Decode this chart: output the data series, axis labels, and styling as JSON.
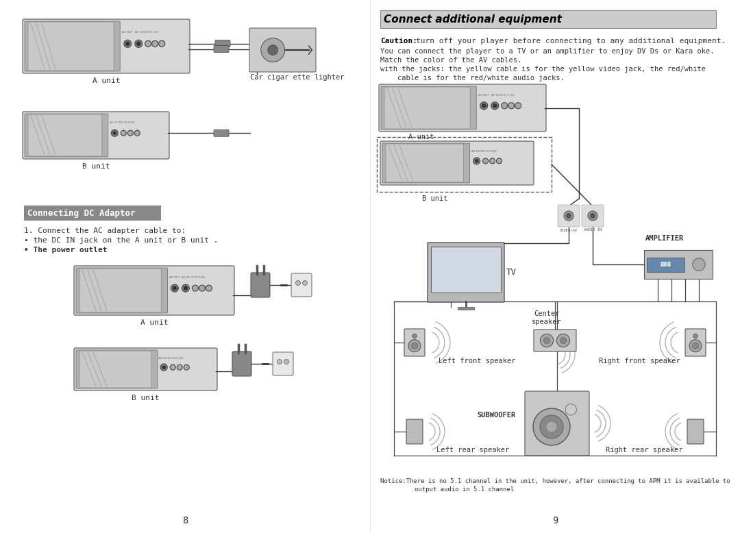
{
  "page_bg": "#ffffff",
  "left_page_num": "8",
  "right_page_num": "9",
  "left": {
    "heading": "Connecting DC Adaptor",
    "heading_bg": "#888888",
    "heading_color": "#ffffff",
    "text1": "1. Connect the AC adapter cable to:",
    "text2": "• the DC IN jack on the A unit or B unit .",
    "text3": "• The power outlet",
    "a_unit_label": "A unit",
    "b_unit_label": "B unit",
    "car_lighter_label": "Car cigar ette lighter"
  },
  "right": {
    "heading": "Connect additional equipment",
    "heading_bg": "#cccccc",
    "heading_color": "#000000",
    "caution_bold": "Caution:",
    "caution_rest": "turn off your player before connecting to any additional equipment.",
    "line1": "You can connect the player to a TV or an amplifier to enjoy DV Ds or Kara oke.",
    "line2": "Match the color of the AV cables.",
    "line3": "with the jacks: the yellow cable is for the yellow video jack, the red/white",
    "line4": "    cable is for the red/white audio jacks.",
    "a_unit_label": "A unit",
    "b_unit_label": "B unit",
    "amplifier_label": "AMPLIFIER",
    "tv_label": "TV",
    "video_label": "VIDEO/AV",
    "audio_label": "AUDIO IN",
    "left_front_label": "Left front speaker",
    "center_label": "Center|speaker",
    "right_front_label": "Right front speaker",
    "subwoofer_label": "SUBWOOFER",
    "left_rear_label": "Left rear speaker",
    "right_rear_label": "Right rear speaker",
    "notice1": "Notice:There is no 5.1 channel in the unit, however, after connecting to APM it is available to",
    "notice2": "output audio in 5.1 channel"
  }
}
